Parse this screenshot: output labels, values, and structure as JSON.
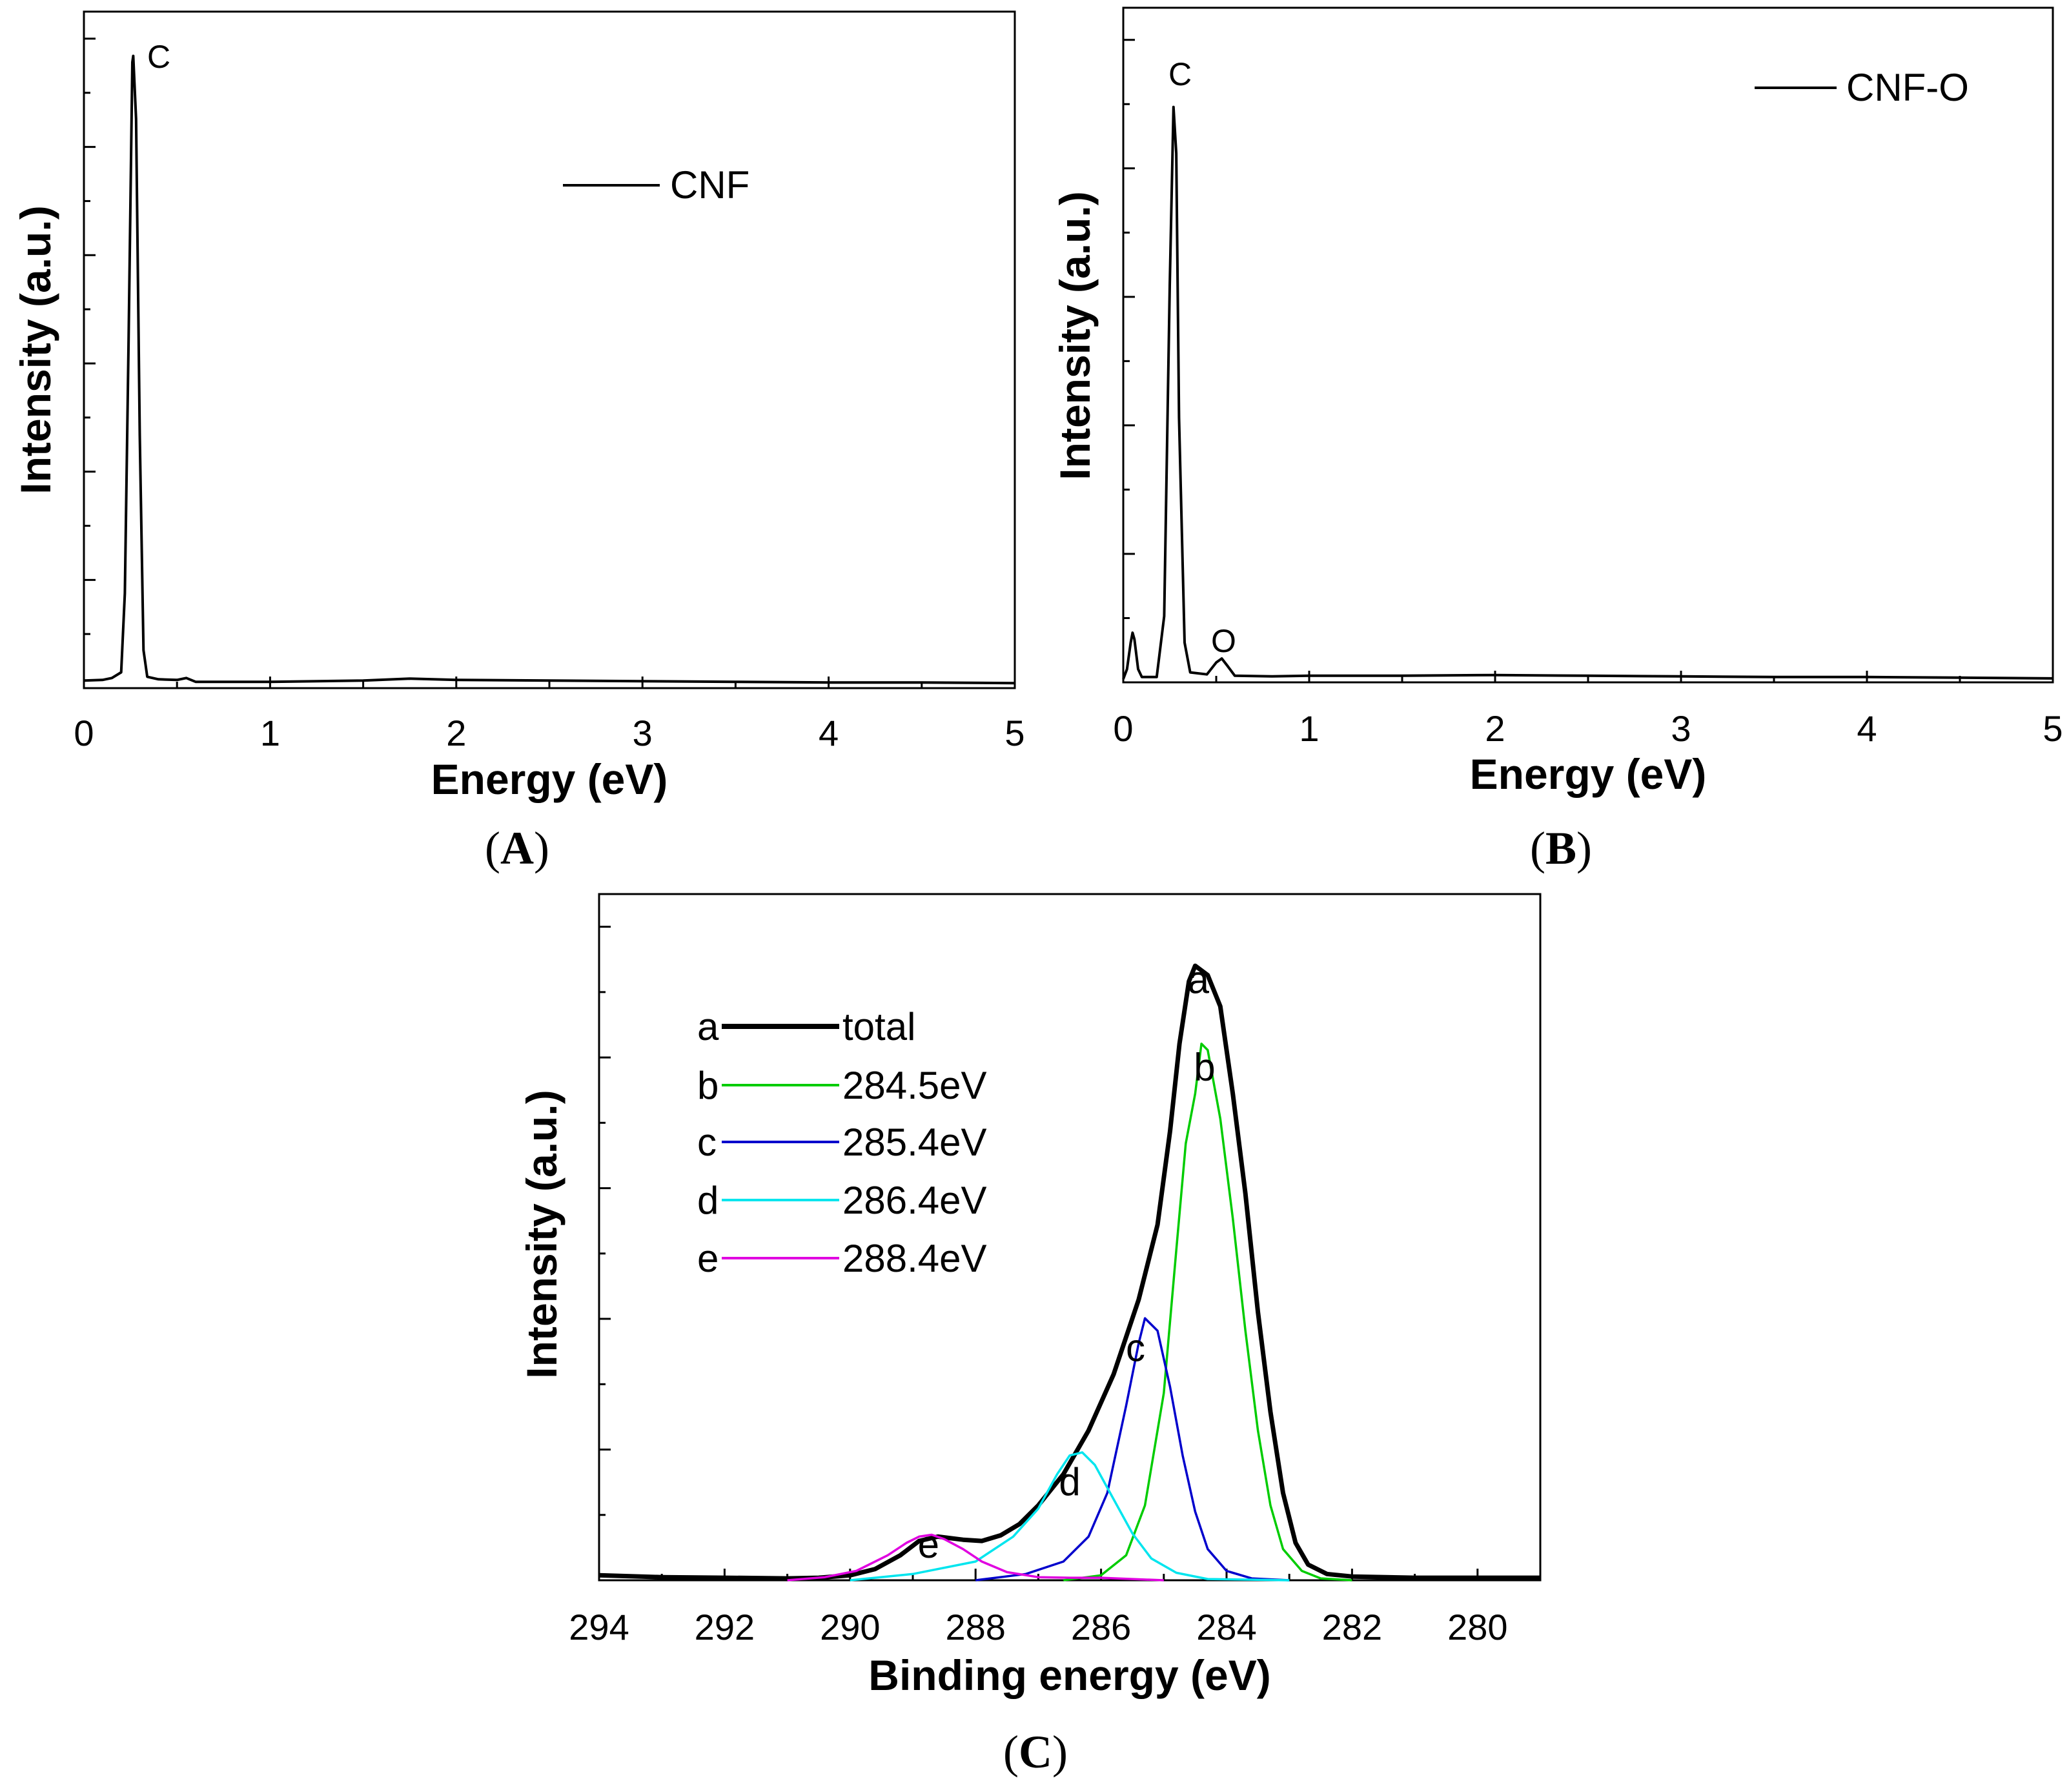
{
  "chart_data": [
    {
      "panel": "A",
      "type": "line",
      "xlabel": "Energy (eV)",
      "ylabel": "Intensity (a.u.)",
      "xlim": [
        0,
        5
      ],
      "ylim": [
        0,
        100
      ],
      "x_ticks": [
        "0",
        "1",
        "2",
        "3",
        "4",
        "5"
      ],
      "legend": [
        "CNF"
      ],
      "annotations": [
        {
          "text": "C",
          "x": 0.36,
          "y": 100
        }
      ],
      "series": [
        {
          "name": "CNF",
          "color": "#000000",
          "points": [
            [
              0,
              1.2
            ],
            [
              0.1,
              1.3
            ],
            [
              0.15,
              1.6
            ],
            [
              0.2,
              2.5
            ],
            [
              0.22,
              15
            ],
            [
              0.24,
              55
            ],
            [
              0.26,
              99
            ],
            [
              0.265,
              100
            ],
            [
              0.28,
              90
            ],
            [
              0.3,
              40
            ],
            [
              0.32,
              6
            ],
            [
              0.34,
              1.8
            ],
            [
              0.4,
              1.4
            ],
            [
              0.5,
              1.3
            ],
            [
              0.55,
              1.6
            ],
            [
              0.6,
              1.0
            ],
            [
              1,
              1.0
            ],
            [
              1.5,
              1.2
            ],
            [
              1.75,
              1.5
            ],
            [
              2,
              1.3
            ],
            [
              2.5,
              1.2
            ],
            [
              3,
              1.1
            ],
            [
              3.5,
              1.0
            ],
            [
              4,
              0.9
            ],
            [
              4.5,
              0.9
            ],
            [
              5,
              0.8
            ]
          ]
        }
      ]
    },
    {
      "panel": "B",
      "type": "line",
      "xlabel": "Energy (eV)",
      "ylabel": "Intensity (a.u.)",
      "xlim": [
        0,
        5
      ],
      "ylim": [
        0,
        100
      ],
      "x_ticks": [
        "0",
        "1",
        "2",
        "3",
        "4",
        "5"
      ],
      "legend": [
        "CNF-O"
      ],
      "annotations": [
        {
          "text": "C",
          "x": 0.29,
          "y": 92
        },
        {
          "text": "O",
          "x": 0.53,
          "y": 6
        }
      ],
      "series": [
        {
          "name": "CNF-O",
          "color": "#000000",
          "points": [
            [
              0,
              0.5
            ],
            [
              0.02,
              2
            ],
            [
              0.04,
              6
            ],
            [
              0.05,
              7.5
            ],
            [
              0.06,
              6.5
            ],
            [
              0.08,
              2
            ],
            [
              0.1,
              0.8
            ],
            [
              0.18,
              0.8
            ],
            [
              0.22,
              10
            ],
            [
              0.25,
              60
            ],
            [
              0.27,
              87
            ],
            [
              0.285,
              80
            ],
            [
              0.3,
              40
            ],
            [
              0.33,
              6
            ],
            [
              0.36,
              1.5
            ],
            [
              0.45,
              1.2
            ],
            [
              0.5,
              3
            ],
            [
              0.53,
              3.6
            ],
            [
              0.56,
              2.5
            ],
            [
              0.6,
              1
            ],
            [
              0.8,
              0.9
            ],
            [
              1,
              1
            ],
            [
              1.5,
              1
            ],
            [
              2,
              1.1
            ],
            [
              2.5,
              1
            ],
            [
              3,
              0.9
            ],
            [
              3.5,
              0.8
            ],
            [
              4,
              0.8
            ],
            [
              4.5,
              0.7
            ],
            [
              5,
              0.6
            ]
          ]
        }
      ]
    },
    {
      "panel": "C",
      "type": "line",
      "xlabel": "Binding energy (eV)",
      "ylabel": "Intensity (a.u.)",
      "xlim": [
        294,
        279
      ],
      "ylim": [
        0,
        100
      ],
      "x_ticks": [
        "294",
        "292",
        "290",
        "288",
        "286",
        "284",
        "282",
        "280"
      ],
      "legend_label_letters": [
        "a",
        "b",
        "c",
        "d",
        "e"
      ],
      "series": [
        {
          "name": "total",
          "letter": "a",
          "color": "#000000",
          "points": [
            [
              294,
              0.8
            ],
            [
              293,
              0.5
            ],
            [
              292,
              0.4
            ],
            [
              291,
              0.3
            ],
            [
              290.5,
              0.4
            ],
            [
              290,
              0.8
            ],
            [
              289.6,
              1.8
            ],
            [
              289.2,
              4
            ],
            [
              288.9,
              6.3
            ],
            [
              288.6,
              7
            ],
            [
              288.2,
              6.5
            ],
            [
              287.9,
              6.3
            ],
            [
              287.6,
              7.2
            ],
            [
              287.3,
              9
            ],
            [
              287,
              12
            ],
            [
              286.6,
              17
            ],
            [
              286.2,
              24
            ],
            [
              285.8,
              33
            ],
            [
              285.4,
              45
            ],
            [
              285.1,
              57
            ],
            [
              284.9,
              72
            ],
            [
              284.75,
              86
            ],
            [
              284.6,
              96
            ],
            [
              284.5,
              98.5
            ],
            [
              284.3,
              97
            ],
            [
              284.1,
              92
            ],
            [
              283.9,
              78
            ],
            [
              283.7,
              62
            ],
            [
              283.5,
              43
            ],
            [
              283.3,
              27
            ],
            [
              283.1,
              14
            ],
            [
              282.9,
              6
            ],
            [
              282.7,
              2.5
            ],
            [
              282.4,
              1
            ],
            [
              282,
              0.6
            ],
            [
              281,
              0.4
            ],
            [
              280,
              0.4
            ],
            [
              279,
              0.4
            ]
          ]
        },
        {
          "name": "284.5eV",
          "letter": "b",
          "color": "#00cc00",
          "points": [
            [
              286.6,
              0
            ],
            [
              286,
              0.8
            ],
            [
              285.6,
              4
            ],
            [
              285.3,
              12
            ],
            [
              285,
              30
            ],
            [
              284.8,
              53
            ],
            [
              284.65,
              70
            ],
            [
              284.5,
              78
            ],
            [
              284.4,
              86
            ],
            [
              284.3,
              85
            ],
            [
              284.1,
              74
            ],
            [
              283.9,
              58
            ],
            [
              283.7,
              40
            ],
            [
              283.5,
              24
            ],
            [
              283.3,
              12
            ],
            [
              283.1,
              5
            ],
            [
              282.8,
              1.5
            ],
            [
              282.5,
              0.3
            ],
            [
              282,
              0
            ]
          ]
        },
        {
          "name": "285.4eV",
          "letter": "c",
          "color": "#0000cc",
          "points": [
            [
              288,
              0
            ],
            [
              287.2,
              1
            ],
            [
              286.6,
              3
            ],
            [
              286.2,
              7
            ],
            [
              285.9,
              14
            ],
            [
              285.6,
              28
            ],
            [
              285.4,
              38
            ],
            [
              285.3,
              42
            ],
            [
              285.1,
              40
            ],
            [
              284.9,
              31
            ],
            [
              284.7,
              20
            ],
            [
              284.5,
              11
            ],
            [
              284.3,
              5
            ],
            [
              284.0,
              1.5
            ],
            [
              283.6,
              0.3
            ],
            [
              283,
              0
            ]
          ]
        },
        {
          "name": "286.4eV",
          "letter": "d",
          "color": "#00e5ee",
          "points": [
            [
              290,
              0
            ],
            [
              289,
              1
            ],
            [
              288,
              3
            ],
            [
              287.4,
              7
            ],
            [
              287,
              11.5
            ],
            [
              286.7,
              17
            ],
            [
              286.5,
              20
            ],
            [
              286.3,
              20.5
            ],
            [
              286.1,
              18.5
            ],
            [
              285.8,
              13
            ],
            [
              285.5,
              7.5
            ],
            [
              285.2,
              3.5
            ],
            [
              284.8,
              1.2
            ],
            [
              284.3,
              0.2
            ],
            [
              283,
              0
            ]
          ]
        },
        {
          "name": "288.4eV",
          "letter": "e",
          "color": "#e000e0",
          "points": [
            [
              291,
              0
            ],
            [
              290.4,
              0.5
            ],
            [
              289.9,
              1.5
            ],
            [
              289.4,
              4
            ],
            [
              289.1,
              6
            ],
            [
              288.9,
              7
            ],
            [
              288.7,
              7.3
            ],
            [
              288.5,
              6.6
            ],
            [
              288.2,
              5
            ],
            [
              287.9,
              3
            ],
            [
              287.5,
              1.3
            ],
            [
              287,
              0.5
            ],
            [
              286.5,
              0.4
            ],
            [
              286,
              0.4
            ],
            [
              285.5,
              0.2
            ],
            [
              285,
              0
            ]
          ]
        }
      ],
      "annotations": [
        {
          "text": "a",
          "x": 284.45,
          "y": 96
        },
        {
          "text": "b",
          "x": 284.35,
          "y": 82
        },
        {
          "text": "c",
          "x": 285.45,
          "y": 37
        },
        {
          "text": "d",
          "x": 286.5,
          "y": 15.5
        },
        {
          "text": "e",
          "x": 288.75,
          "y": 5.5
        }
      ]
    }
  ],
  "labels": {
    "panelA": "(A)",
    "panelB": "(B)",
    "panelC": "(C)",
    "panelA_letter": "A",
    "panelB_letter": "B",
    "panelC_letter": "C"
  }
}
